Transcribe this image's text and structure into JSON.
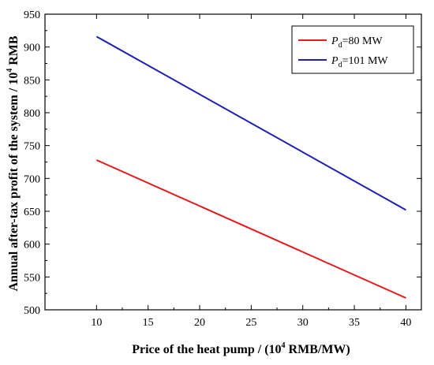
{
  "chart_data": {
    "type": "line",
    "title": "",
    "xlabel_parts": [
      "Price of the heat pump / (10",
      "4",
      "  RMB/MW)"
    ],
    "ylabel_parts": [
      "Annual after-tax profit of the system / 10",
      "4",
      " RMB"
    ],
    "x_ticks": [
      "10",
      "15",
      "20",
      "25",
      "30",
      "35",
      "40"
    ],
    "y_ticks": [
      "500",
      "550",
      "600",
      "650",
      "700",
      "750",
      "800",
      "850",
      "900",
      "950"
    ],
    "xlim": [
      5,
      41.5
    ],
    "ylim": [
      500,
      950
    ],
    "grid": false,
    "legend_position": "top-right",
    "series": [
      {
        "name_main": "P",
        "name_sub": "d",
        "name_rest": "=80 MW",
        "color": "#e31a1c",
        "x": [
          10,
          40
        ],
        "y": [
          728,
          518
        ]
      },
      {
        "name_main": "P",
        "name_sub": "d",
        "name_rest": "=101 MW",
        "color": "#1f1fb4",
        "x": [
          10,
          40
        ],
        "y": [
          916,
          652
        ]
      }
    ]
  }
}
